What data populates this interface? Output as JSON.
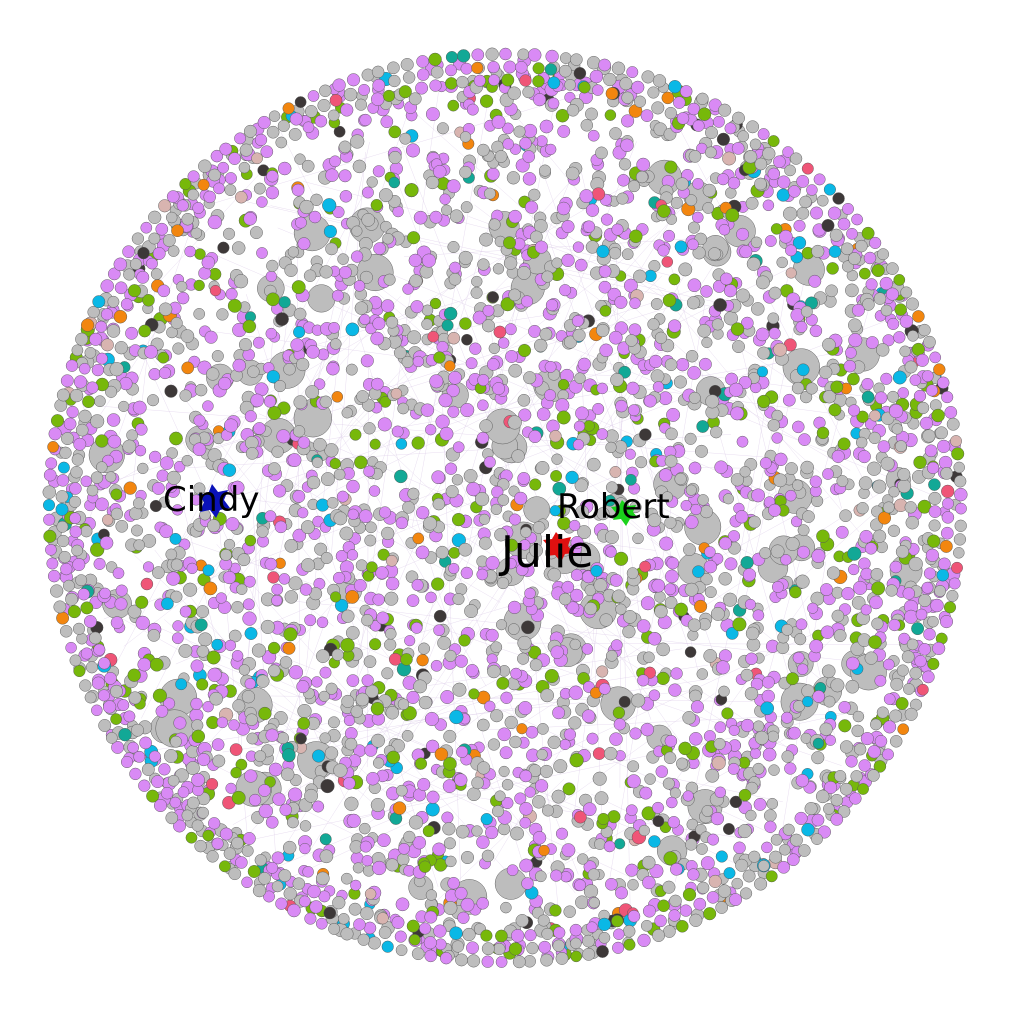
{
  "graph": {
    "labels": {
      "cindy": "Cindy",
      "robert": "Robert",
      "julie": "Julie"
    },
    "colors": {
      "background": "#ffffff",
      "default_node": "#bdbdbd",
      "node_stroke": "#555555",
      "edge": "#d9c8e6",
      "cindy_node": "#0a12b8",
      "robert_node": "#1ad11a",
      "julie_node": "#e01010",
      "category_palette": [
        "#d98af5",
        "#bdbdbd",
        "#77b80a",
        "#0ab8e6",
        "#3d3838",
        "#f2860f",
        "#12a896",
        "#ef5577",
        "#d8b4b0"
      ]
    }
  }
}
